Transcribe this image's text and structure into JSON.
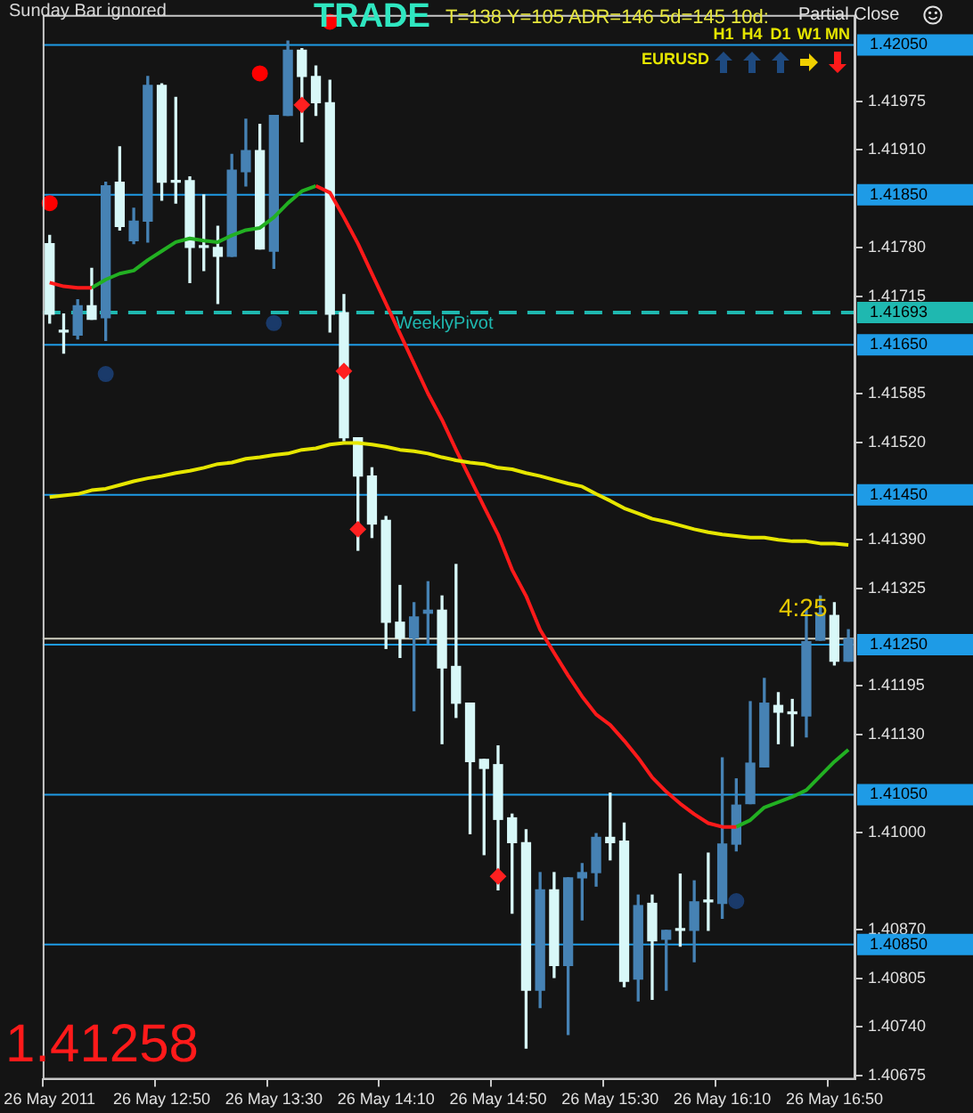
{
  "chart_data": {
    "type": "candlestick",
    "categories": [
      "26 May 2011",
      null,
      null,
      null,
      null,
      null,
      null,
      null,
      "26 May 12:50",
      null,
      null,
      null,
      null,
      null,
      null,
      null,
      "26 May 13:30",
      null,
      null,
      null,
      null,
      null,
      null,
      null,
      "26 May 14:10",
      null,
      null,
      null,
      null,
      null,
      null,
      null,
      "26 May 14:50",
      null,
      null,
      null,
      null,
      null,
      null,
      null,
      "26 May 15:30",
      null,
      null,
      null,
      null,
      null,
      null,
      null,
      "26 May 16:10",
      null,
      null,
      null,
      null,
      null,
      null,
      null,
      "26 May 16:50",
      null
    ],
    "ohlc": [
      [
        1.41785,
        1.41796,
        1.41679,
        1.41691
      ],
      [
        1.41667,
        1.41691,
        1.41639,
        1.41667
      ],
      [
        1.41663,
        1.4171,
        1.41658,
        1.41702
      ],
      [
        1.41702,
        1.41752,
        1.41684,
        1.41684
      ],
      [
        1.41686,
        1.41867,
        1.41656,
        1.41862
      ],
      [
        1.41867,
        1.41914,
        1.41803,
        1.41808
      ],
      [
        1.41789,
        1.41832,
        1.41785,
        1.41815
      ],
      [
        1.41815,
        1.42008,
        1.41787,
        1.41996
      ],
      [
        1.41996,
        1.41998,
        1.41843,
        1.41867
      ],
      [
        1.41867,
        1.4198,
        1.41839,
        1.41867
      ],
      [
        1.41869,
        1.41874,
        1.41733,
        1.4178
      ],
      [
        1.4178,
        1.4185,
        1.41749,
        1.4178
      ],
      [
        1.4178,
        1.41808,
        1.41705,
        1.41768
      ],
      [
        1.41768,
        1.41904,
        1.41768,
        1.41883
      ],
      [
        1.41881,
        1.41951,
        1.41862,
        1.41909
      ],
      [
        1.41909,
        1.41944,
        1.41778,
        1.41778
      ],
      [
        1.41775,
        1.41956,
        1.41752,
        1.41956
      ],
      [
        1.41956,
        1.42055,
        1.41956,
        1.42043
      ],
      [
        1.42043,
        1.42045,
        1.41921,
        1.42008
      ],
      [
        1.42008,
        1.42022,
        1.41956,
        1.41973
      ],
      [
        1.41973,
        1.42003,
        1.41667,
        1.41691
      ],
      [
        1.41693,
        1.41717,
        1.41522,
        1.41526
      ],
      [
        1.41526,
        1.41526,
        1.41376,
        1.41475
      ],
      [
        1.41475,
        1.41486,
        1.41393,
        1.41411
      ],
      [
        1.41416,
        1.41421,
        1.41245,
        1.4128
      ],
      [
        1.4128,
        1.41329,
        1.41233,
        1.41259
      ],
      [
        1.41259,
        1.41306,
        1.41162,
        1.41287
      ],
      [
        1.41292,
        1.41334,
        1.41252,
        1.41296
      ],
      [
        1.41296,
        1.41315,
        1.41118,
        1.41219
      ],
      [
        1.41221,
        1.41357,
        1.41153,
        1.41172
      ],
      [
        1.41172,
        1.41172,
        1.40998,
        1.41094
      ],
      [
        1.41097,
        1.41097,
        1.4097,
        1.41085
      ],
      [
        1.4109,
        1.41115,
        1.40923,
        1.41017
      ],
      [
        1.41019,
        1.41024,
        1.40892,
        1.40986
      ],
      [
        1.40986,
        1.41003,
        1.40712,
        1.40789
      ],
      [
        1.40789,
        1.40946,
        1.40766,
        1.40923
      ],
      [
        1.40923,
        1.40946,
        1.40806,
        1.40822
      ],
      [
        1.40822,
        1.40939,
        1.4073,
        1.40939
      ],
      [
        1.40939,
        1.40958,
        1.40883,
        1.40946
      ],
      [
        1.40946,
        1.40998,
        1.40928,
        1.40993
      ],
      [
        1.40993,
        1.41052,
        1.40963,
        1.40986
      ],
      [
        1.40988,
        1.41012,
        1.40794,
        1.40801
      ],
      [
        1.40804,
        1.40916,
        1.40775,
        1.40902
      ],
      [
        1.40905,
        1.40916,
        1.40777,
        1.40855
      ],
      [
        1.40857,
        1.40869,
        1.40789,
        1.40869
      ],
      [
        1.40869,
        1.40944,
        1.40848,
        1.40869
      ],
      [
        1.40869,
        1.40935,
        1.40827,
        1.40907
      ],
      [
        1.40907,
        1.40972,
        1.40869,
        1.40907
      ],
      [
        1.40905,
        1.41099,
        1.40885,
        1.40984
      ],
      [
        1.40984,
        1.41071,
        1.40975,
        1.41036
      ],
      [
        1.41038,
        1.41174,
        1.41038,
        1.41092
      ],
      [
        1.41087,
        1.41205,
        1.41087,
        1.41172
      ],
      [
        1.41169,
        1.41186,
        1.41118,
        1.4116
      ],
      [
        1.41158,
        1.41177,
        1.41115,
        1.41158
      ],
      [
        1.41155,
        1.41296,
        1.41127,
        1.41254
      ],
      [
        1.41256,
        1.41315,
        1.41256,
        1.41292
      ],
      [
        1.41289,
        1.41306,
        1.41223,
        1.41228
      ],
      [
        1.41228,
        1.4127,
        1.41228,
        1.41258
      ]
    ],
    "colors": [
      "#d8f8f8",
      "#d8f8f8",
      "#4682b4",
      "#d8f8f8",
      "#4682b4",
      "#d8f8f8",
      "#4682b4",
      "#4682b4",
      "#d8f8f8",
      "#d8f8f8",
      "#d8f8f8",
      "#d8f8f8",
      "#d8f8f8",
      "#4682b4",
      "#4682b4",
      "#d8f8f8",
      "#4682b4",
      "#4682b4",
      "#d8f8f8",
      "#d8f8f8",
      "#d8f8f8",
      "#d8f8f8",
      "#d8f8f8",
      "#d8f8f8",
      "#d8f8f8",
      "#d8f8f8",
      "#4682b4",
      "#4682b4",
      "#d8f8f8",
      "#d8f8f8",
      "#d8f8f8",
      "#d8f8f8",
      "#d8f8f8",
      "#d8f8f8",
      "#d8f8f8",
      "#4682b4",
      "#d8f8f8",
      "#4682b4",
      "#4682b4",
      "#4682b4",
      "#d8f8f8",
      "#d8f8f8",
      "#4682b4",
      "#d8f8f8",
      "#4682b4",
      "#d8f8f8",
      "#4682b4",
      "#d8f8f8",
      "#4682b4",
      "#4682b4",
      "#4682b4",
      "#4682b4",
      "#d8f8f8",
      "#d8f8f8",
      "#4682b4",
      "#4682b4",
      "#d8f8f8",
      "#4682b4"
    ],
    "series": [
      {
        "type": "line",
        "color": "#e6e600",
        "marker": "none",
        "values": [
          1.41447,
          1.41449,
          1.41451,
          1.41456,
          1.41458,
          1.41463,
          1.41468,
          1.41472,
          1.41475,
          1.41479,
          1.41482,
          1.41486,
          1.41491,
          1.41493,
          1.41498,
          1.415,
          1.41503,
          1.41505,
          1.4151,
          1.41512,
          1.41517,
          1.41519,
          1.41519,
          1.41517,
          1.41514,
          1.4151,
          1.41508,
          1.41505,
          1.415,
          1.41496,
          1.41493,
          1.41491,
          1.41486,
          1.41484,
          1.41479,
          1.41475,
          1.4147,
          1.41465,
          1.41461,
          1.41451,
          1.41442,
          1.41432,
          1.41425,
          1.41418,
          1.41414,
          1.41409,
          1.41404,
          1.414,
          1.41397,
          1.41395,
          1.41393,
          1.41393,
          1.4139,
          1.41388,
          1.41388,
          1.41385,
          1.41385,
          1.41383
        ]
      },
      {
        "type": "line",
        "color": "#ff1a1a",
        "marker": "none",
        "values": [
          1.41733,
          1.41728,
          1.41726,
          1.41726,
          null,
          null,
          null,
          null,
          null,
          null,
          null,
          null,
          null,
          null,
          null,
          null,
          null,
          null,
          null,
          1.41862,
          1.41853,
          1.4182,
          1.41785,
          1.41745,
          1.41705,
          1.41665,
          1.41625,
          1.41585,
          1.4155,
          1.4151,
          1.41472,
          1.41434,
          1.41397,
          1.4135,
          1.41315,
          1.4127,
          1.41239,
          1.41209,
          1.41181,
          1.41157,
          1.41143,
          1.41122,
          1.41099,
          1.41073,
          1.41054,
          1.41038,
          1.41024,
          1.41012,
          1.41007,
          1.41007,
          null,
          null,
          null,
          null,
          null,
          null,
          null,
          null
        ]
      },
      {
        "type": "line",
        "color": "#22b022",
        "marker": "none",
        "values": [
          null,
          null,
          null,
          1.41726,
          1.41737,
          1.41745,
          1.41749,
          1.41763,
          1.41775,
          1.41787,
          1.41792,
          1.41789,
          1.41787,
          1.41796,
          1.41803,
          1.41806,
          1.4182,
          1.41839,
          1.41855,
          1.41862,
          null,
          null,
          null,
          null,
          null,
          null,
          null,
          null,
          null,
          null,
          null,
          null,
          null,
          null,
          null,
          null,
          null,
          null,
          null,
          null,
          null,
          null,
          null,
          null,
          null,
          null,
          null,
          null,
          null,
          1.41007,
          1.41016,
          1.41033,
          1.4104,
          1.41047,
          1.41056,
          1.41075,
          1.41094,
          1.4111
        ]
      },
      {
        "type": "scatter",
        "color": "#ff0000",
        "marker": "circle",
        "values": [
          1.41839,
          null,
          null,
          null,
          null,
          null,
          null,
          null,
          null,
          null,
          null,
          null,
          null,
          null,
          null,
          1.42012,
          null,
          null,
          null,
          null,
          1.42081,
          null,
          null,
          null,
          null,
          null,
          null,
          null,
          null,
          null,
          null,
          null,
          null,
          null,
          null,
          null,
          null,
          null,
          null,
          null,
          null,
          null,
          null,
          null,
          null,
          null,
          null,
          null,
          null,
          null,
          null,
          null,
          null,
          null,
          null,
          null,
          null,
          null
        ]
      },
      {
        "type": "scatter",
        "color": "#1a3a6a",
        "marker": "circle",
        "values": [
          null,
          null,
          null,
          null,
          1.41611,
          null,
          null,
          null,
          null,
          null,
          null,
          null,
          null,
          null,
          null,
          null,
          1.41679,
          null,
          null,
          null,
          null,
          null,
          null,
          null,
          null,
          null,
          null,
          null,
          null,
          null,
          null,
          null,
          null,
          null,
          null,
          null,
          null,
          null,
          null,
          null,
          null,
          null,
          null,
          null,
          null,
          null,
          null,
          null,
          null,
          1.40908,
          null,
          null,
          null,
          null,
          null,
          null,
          null,
          null
        ]
      },
      {
        "type": "scatter",
        "color": "#ff2020",
        "marker": "diamond",
        "values": [
          null,
          null,
          null,
          null,
          null,
          null,
          null,
          null,
          null,
          null,
          null,
          null,
          null,
          null,
          null,
          null,
          null,
          null,
          1.4197,
          null,
          null,
          1.41615,
          1.41404,
          null,
          null,
          null,
          null,
          null,
          null,
          null,
          null,
          null,
          1.40941,
          null,
          null,
          null,
          null,
          null,
          null,
          null,
          null,
          null,
          null,
          null,
          null,
          null,
          null,
          null,
          null,
          null,
          null,
          null,
          null,
          null,
          null,
          null,
          null,
          null
        ]
      }
    ],
    "ylim": [
      1.4067,
      1.4209
    ],
    "yticks": [
      1.41975,
      {
        "value": 1.4191,
        "label": "1.41910"
      },
      {
        "value": 1.4178,
        "label": "1.41780"
      },
      1.41715,
      1.41585,
      {
        "value": 1.4152,
        "label": "1.41520"
      },
      {
        "value": 1.4139,
        "label": "1.41390"
      },
      1.41325,
      1.41195,
      {
        "value": 1.4113,
        "label": "1.41130"
      },
      {
        "value": 1.41,
        "label": "1.41000"
      },
      {
        "value": 1.4087,
        "label": "1.40870"
      },
      1.40805,
      {
        "value": 1.4074,
        "label": "1.40740"
      },
      1.40675
    ],
    "ref_lines": [
      {
        "axis": "y",
        "value": 1.4205,
        "label": "1.42050",
        "color": "#1e9be6"
      },
      {
        "axis": "y",
        "value": 1.4185,
        "label": "1.41850",
        "color": "#1e9be6"
      },
      {
        "axis": "y",
        "value": 1.41693,
        "label": "1.41693",
        "color": "#1fb8b0",
        "line_style": "dashed"
      },
      {
        "axis": "y",
        "value": 1.4165,
        "label": "1.41650",
        "color": "#1e9be6"
      },
      {
        "axis": "y",
        "value": 1.4145,
        "label": "1.41450",
        "color": "#1e9be6"
      },
      {
        "axis": "y",
        "value": 1.41258,
        "label": null,
        "color": "#d0d0c0"
      },
      {
        "axis": "y",
        "value": 1.4125,
        "label": "1.41250",
        "color": "#1e9be6"
      },
      {
        "axis": "y",
        "value": 1.4105,
        "label": "1.41050",
        "color": "#1e9be6"
      },
      {
        "axis": "y",
        "value": 1.4085,
        "label": "1.40850",
        "color": "#1e9be6"
      }
    ],
    "annotations": [
      "Sunday Bar ignored",
      "TRADE",
      "T=138 Y=105 ADR=146 5d=145 10d:",
      "Partial Close",
      "EURUSD",
      "H1",
      "H4",
      "D1",
      "W1",
      "MN",
      "4:25",
      "1.41258",
      {
        "text": "WeeklyPivot",
        "y": 1.41693
      }
    ]
  }
}
